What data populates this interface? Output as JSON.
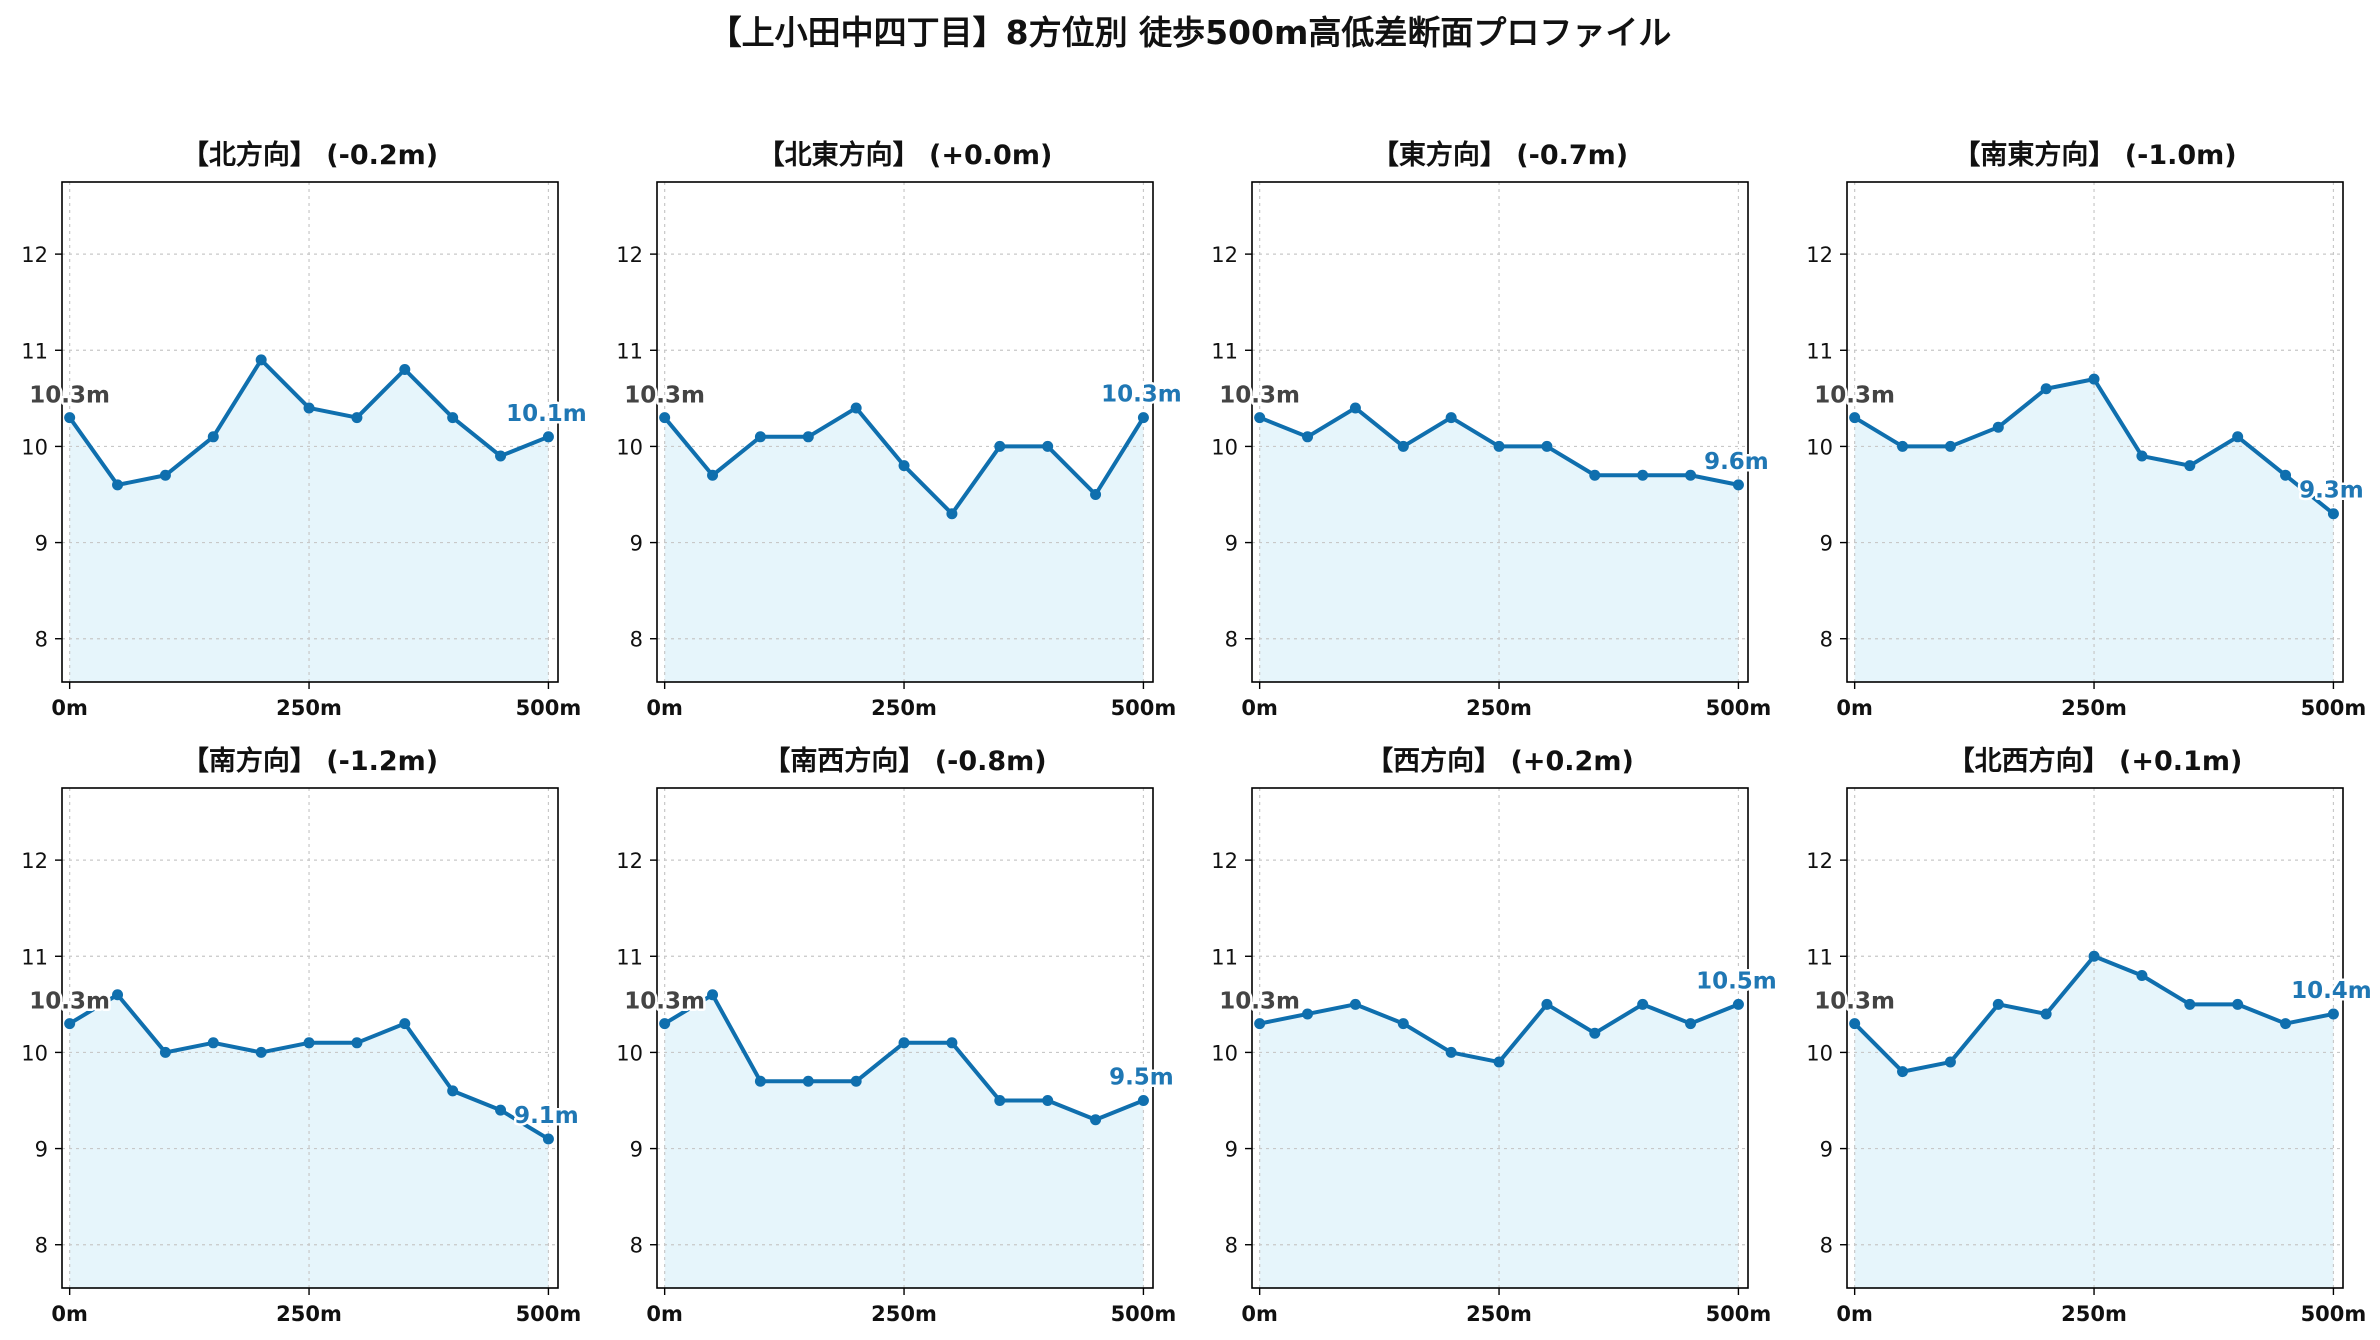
{
  "title": "【上小田中四丁目】8方位別 徒歩500m高低差断面プロファイル",
  "colors": {
    "line": "#1f77b4",
    "line_dark": "#0f6fae",
    "fill": "#e6f5fb",
    "grid": "#c8c8c8",
    "axis": "#000000",
    "start_label": "#444444",
    "end_label": "#1f77b4",
    "text": "#111111"
  },
  "chart_data": [
    {
      "type": "line",
      "title": "【北方向】 (-0.2m)",
      "x": [
        0,
        50,
        100,
        150,
        200,
        250,
        300,
        350,
        400,
        450,
        500
      ],
      "y": [
        10.3,
        9.6,
        9.7,
        10.1,
        10.9,
        10.4,
        10.3,
        10.8,
        10.3,
        9.9,
        10.1
      ],
      "xticks": [
        "0m",
        "250m",
        "500m"
      ],
      "yticks": [
        8,
        9,
        10,
        11,
        12
      ],
      "xlim": [
        -8,
        510
      ],
      "ylim": [
        7.55,
        12.75
      ],
      "start_label": "10.3m",
      "end_label": "10.1m",
      "grid": true
    },
    {
      "type": "line",
      "title": "【北東方向】 (+0.0m)",
      "x": [
        0,
        50,
        100,
        150,
        200,
        250,
        300,
        350,
        400,
        450,
        500
      ],
      "y": [
        10.3,
        9.7,
        10.1,
        10.1,
        10.4,
        9.8,
        9.3,
        10.0,
        10.0,
        9.5,
        10.3
      ],
      "xticks": [
        "0m",
        "250m",
        "500m"
      ],
      "yticks": [
        8,
        9,
        10,
        11,
        12
      ],
      "xlim": [
        -8,
        510
      ],
      "ylim": [
        7.55,
        12.75
      ],
      "start_label": "10.3m",
      "end_label": "10.3m",
      "grid": true
    },
    {
      "type": "line",
      "title": "【東方向】 (-0.7m)",
      "x": [
        0,
        50,
        100,
        150,
        200,
        250,
        300,
        350,
        400,
        450,
        500
      ],
      "y": [
        10.3,
        10.1,
        10.4,
        10.0,
        10.3,
        10.0,
        10.0,
        9.7,
        9.7,
        9.7,
        9.6
      ],
      "xticks": [
        "0m",
        "250m",
        "500m"
      ],
      "yticks": [
        8,
        9,
        10,
        11,
        12
      ],
      "xlim": [
        -8,
        510
      ],
      "ylim": [
        7.55,
        12.75
      ],
      "start_label": "10.3m",
      "end_label": "9.6m",
      "grid": true
    },
    {
      "type": "line",
      "title": "【南東方向】 (-1.0m)",
      "x": [
        0,
        50,
        100,
        150,
        200,
        250,
        300,
        350,
        400,
        450,
        500
      ],
      "y": [
        10.3,
        10.0,
        10.0,
        10.2,
        10.6,
        10.7,
        9.9,
        9.8,
        10.1,
        9.7,
        9.3
      ],
      "xticks": [
        "0m",
        "250m",
        "500m"
      ],
      "yticks": [
        8,
        9,
        10,
        11,
        12
      ],
      "xlim": [
        -8,
        510
      ],
      "ylim": [
        7.55,
        12.75
      ],
      "start_label": "10.3m",
      "end_label": "9.3m",
      "grid": true
    },
    {
      "type": "line",
      "title": "【南方向】 (-1.2m)",
      "x": [
        0,
        50,
        100,
        150,
        200,
        250,
        300,
        350,
        400,
        450,
        500
      ],
      "y": [
        10.3,
        10.6,
        10.0,
        10.1,
        10.0,
        10.1,
        10.1,
        10.3,
        9.6,
        9.4,
        9.1
      ],
      "xticks": [
        "0m",
        "250m",
        "500m"
      ],
      "yticks": [
        8,
        9,
        10,
        11,
        12
      ],
      "xlim": [
        -8,
        510
      ],
      "ylim": [
        7.55,
        12.75
      ],
      "start_label": "10.3m",
      "end_label": "9.1m",
      "grid": true
    },
    {
      "type": "line",
      "title": "【南西方向】 (-0.8m)",
      "x": [
        0,
        50,
        100,
        150,
        200,
        250,
        300,
        350,
        400,
        450,
        500
      ],
      "y": [
        10.3,
        10.6,
        9.7,
        9.7,
        9.7,
        10.1,
        10.1,
        9.5,
        9.5,
        9.3,
        9.5
      ],
      "xticks": [
        "0m",
        "250m",
        "500m"
      ],
      "yticks": [
        8,
        9,
        10,
        11,
        12
      ],
      "xlim": [
        -8,
        510
      ],
      "ylim": [
        7.55,
        12.75
      ],
      "start_label": "10.3m",
      "end_label": "9.5m",
      "grid": true
    },
    {
      "type": "line",
      "title": "【西方向】 (+0.2m)",
      "x": [
        0,
        50,
        100,
        150,
        200,
        250,
        300,
        350,
        400,
        450,
        500
      ],
      "y": [
        10.3,
        10.4,
        10.5,
        10.3,
        10.0,
        9.9,
        10.5,
        10.2,
        10.5,
        10.3,
        10.5
      ],
      "xticks": [
        "0m",
        "250m",
        "500m"
      ],
      "yticks": [
        8,
        9,
        10,
        11,
        12
      ],
      "xlim": [
        -8,
        510
      ],
      "ylim": [
        7.55,
        12.75
      ],
      "start_label": "10.3m",
      "end_label": "10.5m",
      "grid": true
    },
    {
      "type": "line",
      "title": "【北西方向】 (+0.1m)",
      "x": [
        0,
        50,
        100,
        150,
        200,
        250,
        300,
        350,
        400,
        450,
        500
      ],
      "y": [
        10.3,
        9.8,
        9.9,
        10.5,
        10.4,
        11.0,
        10.8,
        10.5,
        10.5,
        10.3,
        10.4
      ],
      "xticks": [
        "0m",
        "250m",
        "500m"
      ],
      "yticks": [
        8,
        9,
        10,
        11,
        12
      ],
      "xlim": [
        -8,
        510
      ],
      "ylim": [
        7.55,
        12.75
      ],
      "start_label": "10.3m",
      "end_label": "10.4m",
      "grid": true
    }
  ]
}
